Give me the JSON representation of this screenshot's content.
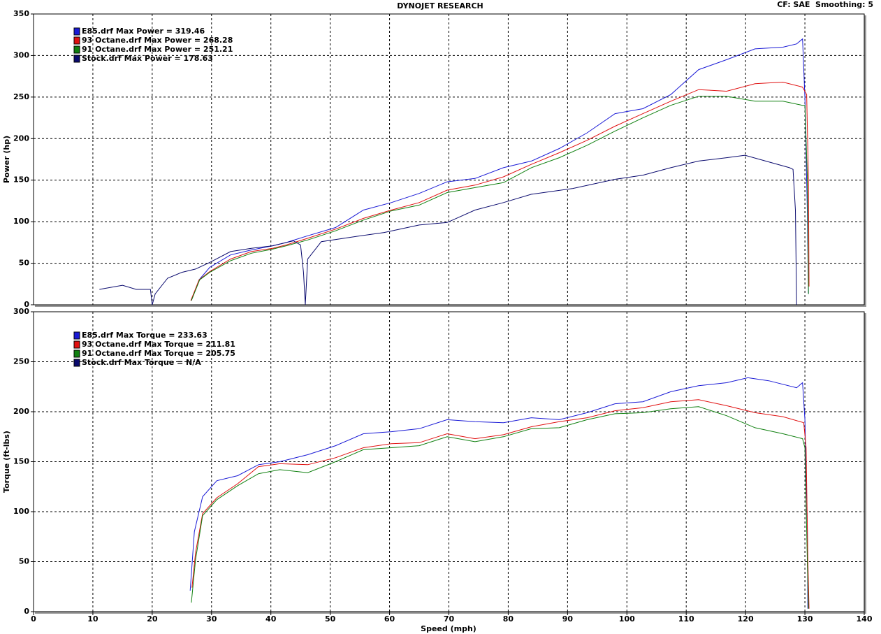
{
  "chart_data": [
    {
      "type": "line",
      "title": "DYNOJET RESEARCH",
      "subtitle": "CF: SAE  Smoothing: 5",
      "ylabel": "Power (hp)",
      "ylim": [
        0,
        350
      ],
      "yticks": [
        0,
        50,
        100,
        150,
        200,
        250,
        300,
        350
      ],
      "grid": true,
      "legend": "top-left",
      "series": [
        {
          "name": "E85.drf Max Power = 319.46",
          "color": "#1a1ad6",
          "x": [
            26.6,
            27.9,
            29.7,
            33.2,
            36.7,
            40.3,
            42.6,
            46.2,
            50.9,
            55.6,
            60.3,
            65.0,
            69.7,
            74.4,
            79.2,
            83.9,
            88.6,
            93.3,
            98.0,
            102.7,
            107.4,
            112.1,
            116.8,
            121.6,
            126.3,
            128.6,
            129.6,
            130.0,
            130.4,
            130.6
          ],
          "values": [
            5,
            30,
            45,
            60,
            66,
            71,
            75,
            83,
            93,
            114,
            123,
            134,
            148,
            152,
            165,
            173,
            188,
            207,
            230,
            236,
            253,
            283,
            295,
            308,
            310,
            314,
            320,
            249,
            114,
            13
          ]
        },
        {
          "name": "93 Octane.drf Max Power = 268.28",
          "color": "#e01010",
          "x": [
            26.5,
            27.9,
            29.7,
            33.2,
            36.7,
            40.3,
            42.6,
            46.2,
            50.9,
            55.6,
            60.3,
            65.0,
            69.7,
            74.4,
            79.2,
            83.9,
            88.6,
            93.3,
            98.0,
            102.7,
            107.4,
            112.1,
            116.8,
            121.6,
            126.3,
            129.6,
            130.3,
            130.6,
            130.7
          ],
          "values": [
            5,
            30,
            40,
            55,
            64,
            68,
            72,
            80,
            91,
            104,
            114,
            123,
            138,
            144,
            154,
            169,
            183,
            198,
            215,
            230,
            245,
            259,
            257,
            266,
            268,
            262,
            253,
            148,
            22
          ]
        },
        {
          "name": "91 Octane.drf Max Power = 251.21",
          "color": "#108010",
          "x": [
            26.6,
            28.0,
            29.7,
            33.2,
            36.7,
            40.3,
            42.6,
            46.2,
            50.9,
            55.6,
            60.3,
            65.0,
            69.7,
            74.4,
            79.2,
            83.9,
            88.6,
            93.3,
            98.0,
            102.7,
            107.4,
            112.1,
            116.8,
            121.6,
            126.3,
            129.6,
            130.0,
            130.4,
            130.6
          ],
          "values": [
            5,
            30,
            39,
            53,
            62,
            67,
            71,
            78,
            89,
            102,
            113,
            120,
            135,
            141,
            147,
            165,
            177,
            192,
            209,
            225,
            240,
            251,
            251,
            245,
            245,
            240,
            240,
            156,
            13
          ]
        },
        {
          "name": "Stock.drf Max Power = 178.63",
          "color": "#0a0a6e",
          "x": [
            11.1,
            15.0,
            17.3,
            19.7,
            20.0,
            20.5,
            22.6,
            25.0,
            27.3,
            29.7,
            33.2,
            36.7,
            40.3,
            43.8,
            45.0,
            45.5,
            45.8,
            46.2,
            48.5,
            53.2,
            59.1,
            65.0,
            69.7,
            74.4,
            79.2,
            83.9,
            90.9,
            98.0,
            102.7,
            107.4,
            112.1,
            116.8,
            119.9,
            123.9,
            127.4,
            128.0,
            128.4,
            128.6
          ],
          "values": [
            18.5,
            23.5,
            18.5,
            18.5,
            0,
            13,
            32,
            39,
            43,
            51,
            64,
            68,
            71,
            77,
            72,
            39,
            0,
            55,
            76,
            81,
            87,
            96,
            99,
            114,
            123,
            133,
            140,
            151,
            156,
            165,
            173,
            177,
            180,
            172,
            165,
            163,
            114,
            0
          ]
        }
      ]
    },
    {
      "type": "line",
      "ylabel": "Torque (ft-lbs)",
      "xlabel": "Speed (mph)",
      "xlim": [
        0,
        140
      ],
      "xticks": [
        0,
        10,
        20,
        30,
        40,
        50,
        60,
        70,
        80,
        90,
        100,
        110,
        120,
        130,
        140
      ],
      "ylim": [
        0,
        300
      ],
      "yticks": [
        0,
        50,
        100,
        150,
        200,
        250,
        300
      ],
      "grid": true,
      "legend": "top-left",
      "series": [
        {
          "name": "E85.drf Max Torque = 233.63",
          "color": "#1a1ad6",
          "x": [
            26.4,
            27.1,
            28.5,
            30.9,
            34.4,
            37.9,
            41.5,
            46.2,
            50.9,
            55.6,
            60.3,
            65.0,
            69.7,
            74.4,
            79.2,
            83.9,
            88.6,
            93.3,
            98.0,
            102.7,
            107.4,
            112.1,
            116.8,
            120.4,
            123.9,
            128.6,
            129.6,
            130.0,
            130.4,
            130.5
          ],
          "values": [
            21,
            80,
            115,
            131,
            136,
            147,
            150,
            157,
            166,
            178,
            180,
            183,
            192,
            190,
            189,
            194,
            192,
            199,
            208,
            210,
            220,
            226,
            229,
            234,
            231,
            224,
            229,
            192,
            87,
            3
          ]
        },
        {
          "name": "93 Octane.drf Max Torque = 211.81",
          "color": "#e01010",
          "x": [
            26.7,
            27.3,
            28.5,
            30.9,
            34.4,
            37.9,
            41.5,
            46.2,
            50.9,
            55.6,
            60.3,
            65.0,
            69.7,
            74.4,
            79.2,
            83.9,
            88.6,
            93.3,
            98.0,
            102.7,
            107.4,
            112.1,
            116.8,
            121.6,
            126.3,
            129.8,
            130.2,
            130.5,
            130.7
          ],
          "values": [
            24,
            59,
            98,
            114,
            128,
            145,
            148,
            147,
            154,
            164,
            168,
            169,
            178,
            173,
            177,
            185,
            190,
            194,
            201,
            204,
            210,
            212,
            206,
            199,
            195,
            189,
            164,
            52,
            3
          ]
        },
        {
          "name": "91 Octane.drf Max Torque = 205.75",
          "color": "#108010",
          "x": [
            26.6,
            27.3,
            28.5,
            30.9,
            34.4,
            37.9,
            41.5,
            46.2,
            50.9,
            55.6,
            60.3,
            65.0,
            69.7,
            74.4,
            79.2,
            83.9,
            88.6,
            93.3,
            98.0,
            102.7,
            107.4,
            112.1,
            116.8,
            121.6,
            126.3,
            129.6,
            130.0,
            130.4,
            130.6
          ],
          "values": [
            9,
            52,
            96,
            112,
            126,
            138,
            142,
            139,
            150,
            162,
            164,
            166,
            175,
            170,
            175,
            183,
            184,
            192,
            198,
            199,
            203,
            205,
            196,
            184,
            178,
            173,
            164,
            52,
            3
          ]
        },
        {
          "name": "Stock.drf Max Torque = N/A",
          "color": "#0a0a6e"
        }
      ]
    }
  ]
}
